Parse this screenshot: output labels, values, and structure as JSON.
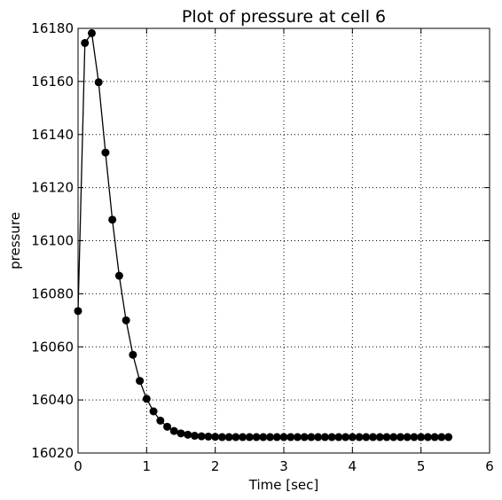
{
  "chart_data": {
    "type": "line",
    "title": "Plot of pressure at cell 6",
    "xlabel": "Time [sec]",
    "ylabel": "pressure",
    "xlim": [
      0,
      6
    ],
    "ylim": [
      16020,
      16180
    ],
    "xticks": [
      "0",
      "1",
      "2",
      "3",
      "4",
      "5",
      "6"
    ],
    "yticks": [
      "16020",
      "16040",
      "16060",
      "16080",
      "16100",
      "16120",
      "16140",
      "16160",
      "16180"
    ],
    "grid": true,
    "marker": "circle",
    "color": "#000000",
    "series": [
      {
        "x": [
          0.0,
          0.1,
          0.2,
          0.3,
          0.4,
          0.5,
          0.6,
          0.7,
          0.8,
          0.9,
          1.0,
          1.1,
          1.2,
          1.3,
          1.4,
          1.5,
          1.6,
          1.7,
          1.8,
          1.9,
          2.0,
          2.1,
          2.2,
          2.3,
          2.4,
          2.5,
          2.6,
          2.7,
          2.8,
          2.9,
          3.0,
          3.1,
          3.2,
          3.3,
          3.4,
          3.5,
          3.6,
          3.7,
          3.8,
          3.9,
          4.0,
          4.1,
          4.2,
          4.3,
          4.4,
          4.5,
          4.6,
          4.7,
          4.8,
          4.9,
          5.0,
          5.1,
          5.2,
          5.3,
          5.4
        ],
        "y": [
          16073.5,
          16174.5,
          16178.2,
          16159.7,
          16133.2,
          16107.9,
          16086.8,
          16070.0,
          16057.0,
          16047.2,
          16040.4,
          16035.7,
          16032.2,
          16029.9,
          16028.3,
          16027.4,
          16026.9,
          16026.5,
          16026.3,
          16026.2,
          16026.1,
          16026.0,
          16026.0,
          16026.0,
          16026.0,
          16026.0,
          16026.0,
          16026.0,
          16026.0,
          16026.0,
          16026.0,
          16026.0,
          16026.0,
          16026.0,
          16026.0,
          16026.0,
          16026.0,
          16026.0,
          16026.0,
          16026.0,
          16026.0,
          16026.0,
          16026.0,
          16026.0,
          16026.0,
          16026.0,
          16026.0,
          16026.0,
          16026.0,
          16026.0,
          16026.0,
          16026.0,
          16026.0,
          16026.0,
          16026.0
        ]
      }
    ]
  }
}
